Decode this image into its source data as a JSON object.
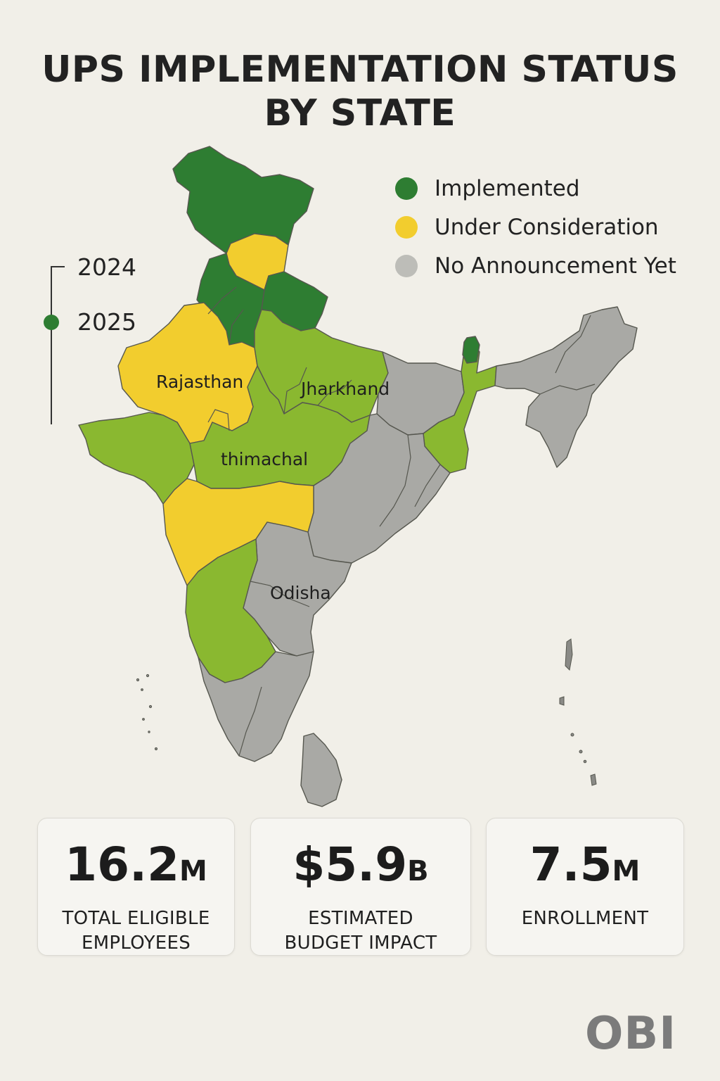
{
  "title": {
    "line1": "UPS IMPLEMENTATION STATUS",
    "line2": "BY STATE"
  },
  "legend": [
    {
      "label": "Implemented",
      "color": "#2e7d32"
    },
    {
      "label": "Under Consideration",
      "color": "#f2cd2e"
    },
    {
      "label": "No Announcement Yet",
      "color": "#a9a9a5"
    }
  ],
  "timeline": {
    "years": [
      "2024",
      "2025"
    ],
    "selected_year": "2025"
  },
  "map": {
    "status_colors": {
      "implemented": "#2e7d32",
      "implemented_partial": "#8ab830",
      "under_consideration": "#f2cd2e",
      "no_announcement": "#a9a9a5"
    },
    "labels": {
      "rajasthan": "Rajasthan",
      "jharkhand": "Jharkhand",
      "thimachal": "thimachal",
      "odisha": "Odisha"
    }
  },
  "stats": [
    {
      "value": "16.2",
      "unit": "M",
      "label_line1": "TOTAL ELIGIBLE",
      "label_line2": "EMPLOYEES"
    },
    {
      "value": "$5.9",
      "unit": "B",
      "label_line1": "ESTIMATED",
      "label_line2": "BUDGET IMPACT"
    },
    {
      "value": "7.5",
      "unit": "M",
      "label_line1": "ENROLLMENT",
      "label_line2": ""
    }
  ],
  "logo": "OBI"
}
